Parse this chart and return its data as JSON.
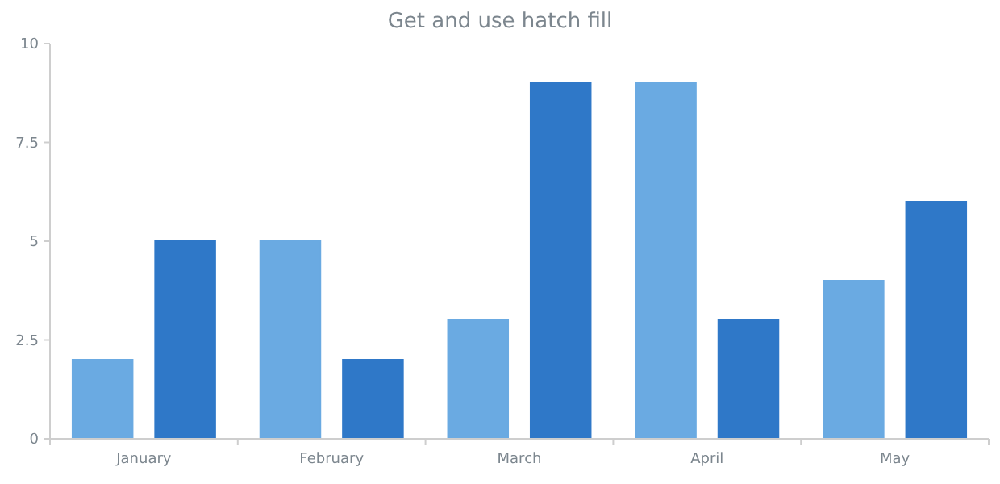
{
  "chart_data": {
    "type": "bar",
    "title": "Get and use hatch fill",
    "categories": [
      "January",
      "February",
      "March",
      "April",
      "May"
    ],
    "series": [
      {
        "color": "#6aaae2",
        "values": [
          2,
          5,
          3,
          9,
          4
        ]
      },
      {
        "color": "#2f78c8",
        "values": [
          5,
          2,
          9,
          3,
          6
        ]
      }
    ],
    "ylim": [
      0,
      10
    ],
    "yticks": [
      0,
      2.5,
      5,
      7.5,
      10
    ],
    "grid": false
  }
}
